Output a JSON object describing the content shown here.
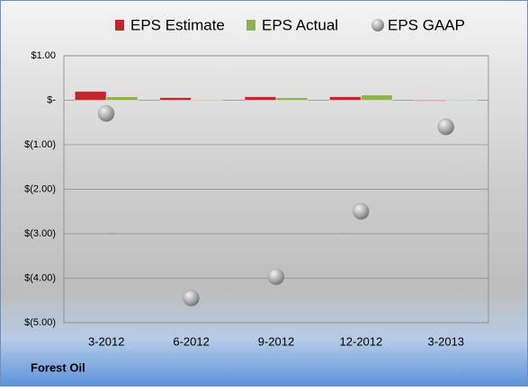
{
  "chart_data": {
    "type": "bar",
    "caption": "Forest Oil",
    "categories": [
      "3-2012",
      "6-2012",
      "9-2012",
      "12-2012",
      "3-2013"
    ],
    "series": [
      {
        "name": "EPS Estimate",
        "type": "bar",
        "color": "#c0282d",
        "values": [
          0.2,
          0.06,
          0.08,
          0.08,
          -0.02
        ]
      },
      {
        "name": "EPS Actual",
        "type": "bar",
        "color": "#8db255",
        "values": [
          0.08,
          0.02,
          0.06,
          0.12,
          -0.01
        ]
      },
      {
        "name": "EPS GAAP",
        "type": "scatter",
        "color": "#9a9a9a",
        "values": [
          -0.3,
          -4.45,
          -3.97,
          -2.5,
          -0.6
        ]
      }
    ],
    "ylim": [
      -5,
      1
    ],
    "yticks": [
      {
        "value": 1,
        "label": "$1.00"
      },
      {
        "value": 0,
        "label": "$-"
      },
      {
        "value": -1,
        "label": "$(1.00)"
      },
      {
        "value": -2,
        "label": "$(2.00)"
      },
      {
        "value": -3,
        "label": "$(3.00)"
      },
      {
        "value": -4,
        "label": "$(4.00)"
      },
      {
        "value": -5,
        "label": "$(5.00)"
      }
    ],
    "grid": true
  }
}
